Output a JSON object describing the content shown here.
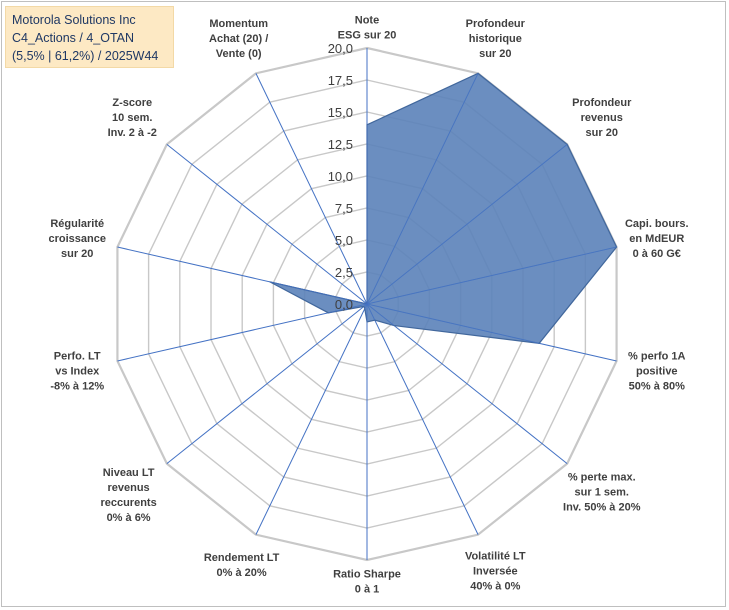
{
  "title": {
    "lines": [
      "Motorola Solutions Inc",
      "C4_Actions / 4_OTAN",
      "(5,5% | 61,2%) / 2025W44"
    ]
  },
  "colors": {
    "fill": "#5b82b9",
    "stroke": "#41679c",
    "grid": "#c8c8c8",
    "spoke": "#4472c4",
    "label": "#404040",
    "title_bg": "#fde9c4",
    "title_text": "#1f3864"
  },
  "chart_data": {
    "type": "radar",
    "title": "",
    "rmin": 0,
    "rmax": 20,
    "tick_step": 2.5,
    "ticks": [
      "0,0",
      "2,5",
      "5,0",
      "7,5",
      "10,0",
      "12,5",
      "15,0",
      "17,5",
      "20,0"
    ],
    "grid": true,
    "axes": [
      {
        "label": [
          "Note",
          "ESG sur 20"
        ],
        "value": 14.0
      },
      {
        "label": [
          "Profondeur",
          "historique",
          "sur 20"
        ],
        "value": 20.0
      },
      {
        "label": [
          "Profondeur",
          "revenus",
          "sur 20"
        ],
        "value": 20.0
      },
      {
        "label": [
          "Capi. bours.",
          "en MdEUR",
          "0 à 60 G€"
        ],
        "value": 20.0
      },
      {
        "label": [
          "% perfo 1A",
          "positive",
          "50% à 80%"
        ],
        "value": 13.8
      },
      {
        "label": [
          "% perte max.",
          "sur 1 sem.",
          "Inv. 50% à 20%"
        ],
        "value": 2.7
      },
      {
        "label": [
          "Volatilité LT",
          "Inversée",
          "40% à 0%"
        ],
        "value": 1.4
      },
      {
        "label": [
          "Ratio Sharpe",
          "0 à 1"
        ],
        "value": 1.4
      },
      {
        "label": [
          "Rendement LT",
          "0% à 20%"
        ],
        "value": 0.4
      },
      {
        "label": [
          "Niveau LT",
          "revenus",
          "reccurents",
          "0% à 6%"
        ],
        "value": 0.3
      },
      {
        "label": [
          "Perfo. LT",
          "vs Index",
          "-8% à 12%"
        ],
        "value": 3.1
      },
      {
        "label": [
          "Régularité",
          "croissance",
          "sur 20"
        ],
        "value": 7.8
      },
      {
        "label": [
          "Z-score",
          "10 sem.",
          "Inv. 2 à -2"
        ],
        "value": 0.0
      },
      {
        "label": [
          "Momentum",
          "Achat (20) /",
          "Vente (0)"
        ],
        "value": 0.0
      }
    ]
  }
}
